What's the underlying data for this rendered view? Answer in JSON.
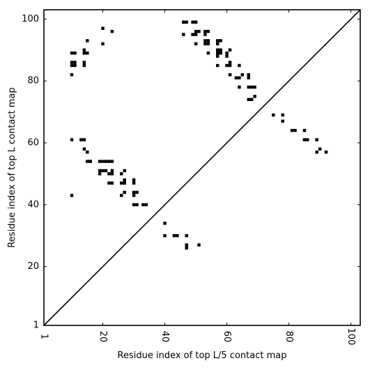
{
  "chart_data": {
    "type": "heatmap",
    "xlabel": "Residue index of top L/5 contact map",
    "ylabel": "Residue index of top L contact map",
    "xlim": [
      1,
      103
    ],
    "ylim": [
      1,
      103
    ],
    "xticks": [
      {
        "value": 1,
        "label": "1"
      },
      {
        "value": 20,
        "label": "20"
      },
      {
        "value": 40,
        "label": "40"
      },
      {
        "value": 60,
        "label": "60"
      },
      {
        "value": 80,
        "label": "80"
      },
      {
        "value": 100,
        "label": "100"
      }
    ],
    "yticks": [
      {
        "value": 1,
        "label": "1"
      },
      {
        "value": 20,
        "label": "20"
      },
      {
        "value": 40,
        "label": "40"
      },
      {
        "value": 60,
        "label": "60"
      },
      {
        "value": 80,
        "label": "80"
      },
      {
        "value": 100,
        "label": "100"
      }
    ],
    "diagonal": true,
    "mark_color": "#000000",
    "lower_contacts": [
      [
        75,
        69
      ],
      [
        78,
        69
      ],
      [
        78,
        67
      ],
      [
        81,
        64
      ],
      [
        82,
        64
      ],
      [
        85,
        64
      ],
      [
        85,
        61
      ],
      [
        86,
        61
      ],
      [
        89,
        61
      ],
      [
        89,
        57
      ],
      [
        90,
        58
      ],
      [
        92,
        57
      ],
      [
        64,
        78
      ],
      [
        67,
        78
      ],
      [
        68,
        78
      ],
      [
        69,
        78
      ],
      [
        67,
        74
      ],
      [
        68,
        74
      ],
      [
        69,
        75
      ],
      [
        63,
        81
      ],
      [
        64,
        81
      ],
      [
        65,
        82
      ],
      [
        67,
        82
      ],
      [
        67,
        81
      ],
      [
        61,
        82
      ],
      [
        64,
        85
      ],
      [
        60,
        85
      ],
      [
        61,
        85
      ],
      [
        61,
        86
      ],
      [
        57,
        85
      ],
      [
        61,
        90
      ],
      [
        60,
        89
      ],
      [
        60,
        88
      ],
      [
        57,
        89
      ],
      [
        57,
        90
      ],
      [
        58,
        90
      ],
      [
        58,
        89
      ],
      [
        57,
        88
      ],
      [
        57,
        92
      ],
      [
        58,
        93
      ],
      [
        57,
        93
      ],
      [
        53,
        93
      ],
      [
        54,
        93
      ],
      [
        53,
        92
      ],
      [
        54,
        92
      ],
      [
        53,
        95
      ],
      [
        53,
        96
      ],
      [
        54,
        96
      ],
      [
        54,
        89
      ],
      [
        50,
        92
      ],
      [
        49,
        95
      ],
      [
        50,
        95
      ],
      [
        50,
        96
      ],
      [
        51,
        96
      ],
      [
        49,
        99
      ],
      [
        50,
        99
      ],
      [
        46,
        99
      ],
      [
        47,
        99
      ],
      [
        46,
        95
      ]
    ],
    "upper_contacts": [
      [
        10,
        89
      ],
      [
        11,
        89
      ],
      [
        14,
        89
      ],
      [
        15,
        89
      ],
      [
        14,
        90
      ],
      [
        15,
        93
      ],
      [
        20,
        97
      ],
      [
        23,
        96
      ],
      [
        20,
        92
      ],
      [
        10,
        86
      ],
      [
        11,
        86
      ],
      [
        10,
        85
      ],
      [
        11,
        85
      ],
      [
        14,
        86
      ],
      [
        14,
        85
      ],
      [
        10,
        82
      ],
      [
        10,
        61
      ],
      [
        13,
        61
      ],
      [
        14,
        61
      ],
      [
        14,
        58
      ],
      [
        15,
        57
      ],
      [
        15,
        54
      ],
      [
        16,
        54
      ],
      [
        19,
        54
      ],
      [
        20,
        54
      ],
      [
        21,
        54
      ],
      [
        22,
        54
      ],
      [
        23,
        54
      ],
      [
        19,
        51
      ],
      [
        20,
        51
      ],
      [
        21,
        51
      ],
      [
        19,
        50
      ],
      [
        22,
        50
      ],
      [
        23,
        50
      ],
      [
        23,
        51
      ],
      [
        22,
        47
      ],
      [
        23,
        47
      ],
      [
        26,
        47
      ],
      [
        27,
        47
      ],
      [
        27,
        48
      ],
      [
        26,
        50
      ],
      [
        27,
        51
      ],
      [
        30,
        47
      ],
      [
        30,
        48
      ],
      [
        26,
        43
      ],
      [
        27,
        44
      ],
      [
        30,
        43
      ],
      [
        30,
        44
      ],
      [
        31,
        44
      ],
      [
        30,
        40
      ],
      [
        31,
        40
      ],
      [
        33,
        40
      ],
      [
        34,
        40
      ],
      [
        10,
        43
      ],
      [
        40,
        34
      ],
      [
        40,
        30
      ],
      [
        43,
        30
      ],
      [
        44,
        30
      ],
      [
        47,
        30
      ],
      [
        47,
        27
      ],
      [
        47,
        26
      ],
      [
        51,
        27
      ]
    ]
  }
}
